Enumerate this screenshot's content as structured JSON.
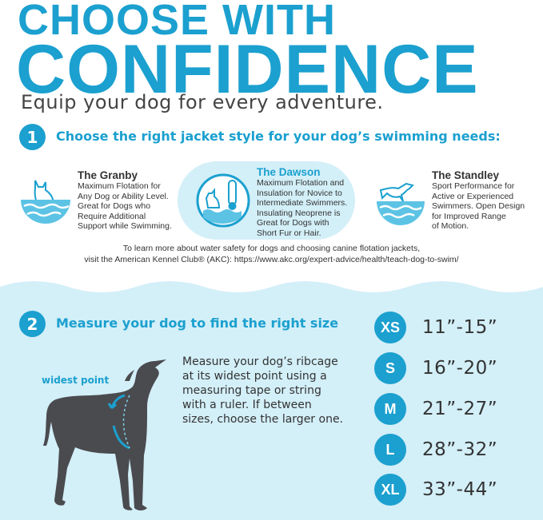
{
  "header": {
    "title_line1": "CHOOSE WITH",
    "title_line2": "CONFIDENCE",
    "subtitle": "Equip your dog for every adventure."
  },
  "step1": {
    "number": "1",
    "heading": "Choose the right jacket style for your dog’s swimming needs:",
    "products": [
      {
        "name": "The Granby",
        "lines": [
          "Maximum Flotation for",
          "Any Dog or Ability Level.",
          "Great for Dogs who",
          "Require Additional",
          "Support while Swimming."
        ],
        "icon": "dog-in-water-icon"
      },
      {
        "name": "The Dawson",
        "lines": [
          "Maximum Flotation and",
          "Insulation for Novice to",
          "Intermediate Swimmers.",
          "Insulating Neoprene is",
          "Great for Dogs with",
          "Short Fur or Hair."
        ],
        "icon": "dog-thermometer-icon",
        "highlighted": true
      },
      {
        "name": "The Standley",
        "lines": [
          "Sport Performance for",
          "Active or Experienced",
          "Swimmers. Open Design",
          "for Improved Range",
          "of Motion."
        ],
        "icon": "dog-jumping-icon"
      }
    ],
    "akc_note_line1": "To learn more about water safety for dogs and choosing canine flotation jackets,",
    "akc_note_line2": "visit the American Kennel Club® (AKC):  https://www.akc.org/expert-advice/health/teach-dog-to-swim/"
  },
  "step2": {
    "number": "2",
    "heading": "Measure your dog to find the right size",
    "widest_point_label": "widest point",
    "instructions": [
      "Measure your dog’s ribcage",
      "at its widest point using a",
      "measuring tape or string",
      "with a ruler. If between",
      "sizes, choose the larger one."
    ],
    "sizes": [
      {
        "size": "XS",
        "range": "11”-15”"
      },
      {
        "size": "S",
        "range": "16”-20”"
      },
      {
        "size": "M",
        "range": "21”-27”"
      },
      {
        "size": "L",
        "range": "28”-32”"
      },
      {
        "size": "XL",
        "range": "33”-44”"
      }
    ]
  },
  "colors": {
    "accent": "#1ba0cf",
    "light_bg": "#d3eff8",
    "dog": "#4a4b4f"
  }
}
